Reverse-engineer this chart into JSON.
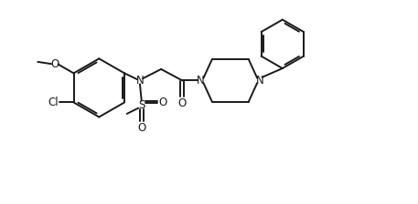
{
  "background_color": "#ffffff",
  "line_color": "#1a1a1a",
  "line_width": 1.4,
  "font_size": 8.5,
  "figsize": [
    4.57,
    2.24
  ],
  "dpi": 100,
  "xlim": [
    0,
    10
  ],
  "ylim": [
    0,
    5
  ]
}
